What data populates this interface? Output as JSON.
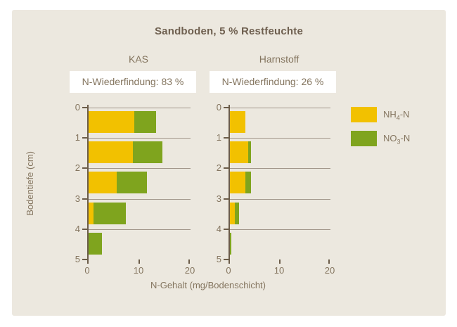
{
  "title": "Sandboden, 5 % Restfeuchte",
  "axis": {
    "xlabel": "N-Gehalt (mg/Bodenschicht)",
    "ylabel": "Bodentiefe (cm)"
  },
  "legend": {
    "items": [
      {
        "pre": "NH",
        "sub": "4",
        "post": "-N",
        "color": "#F2C100"
      },
      {
        "pre": "NO",
        "sub": "3",
        "post": "-N",
        "color": "#7FA41E"
      }
    ]
  },
  "colors": {
    "panel_bg": "#ECE8DF",
    "axis_line": "#6B5C49",
    "gridline": "#A1968A",
    "text": "#84755F",
    "title_text": "#6F6050",
    "annotation_bg": "#FFFFFF",
    "nh4_yellow": "#F2C100",
    "no3_green": "#7FA41E"
  },
  "chart_data": [
    {
      "type": "bar",
      "orientation": "horizontal-stacked",
      "title": "KAS",
      "annotation": "N-Wiederfindung: 83 %",
      "categories": [
        "0-1",
        "1-2",
        "2-3",
        "3-4",
        "4-5"
      ],
      "series": [
        {
          "name": "NH4-N",
          "color": "#F2C100",
          "values": [
            9.2,
            8.9,
            5.8,
            1.3,
            0
          ]
        },
        {
          "name": "NO3-N",
          "color": "#7FA41E",
          "values": [
            4.2,
            5.8,
            5.9,
            6.2,
            2.9
          ]
        }
      ],
      "xlim": [
        0,
        20
      ],
      "xticks": [
        0,
        10,
        20
      ],
      "yticks": [
        0,
        1,
        2,
        3,
        4,
        5
      ],
      "grid": "horizontal"
    },
    {
      "type": "bar",
      "orientation": "horizontal-stacked",
      "title": "Harnstoff",
      "annotation": "N-Wiederfindung: 26 %",
      "categories": [
        "0-1",
        "1-2",
        "2-3",
        "3-4",
        "4-5"
      ],
      "series": [
        {
          "name": "NH4-N",
          "color": "#F2C100",
          "values": [
            3.4,
            3.9,
            3.4,
            1.3,
            0
          ]
        },
        {
          "name": "NO3-N",
          "color": "#7FA41E",
          "values": [
            0,
            0.5,
            1.1,
            0.8,
            0.5
          ]
        }
      ],
      "xlim": [
        0,
        20
      ],
      "xticks": [
        0,
        10,
        20
      ],
      "yticks": [
        0,
        1,
        2,
        3,
        4,
        5
      ],
      "grid": "horizontal"
    }
  ]
}
